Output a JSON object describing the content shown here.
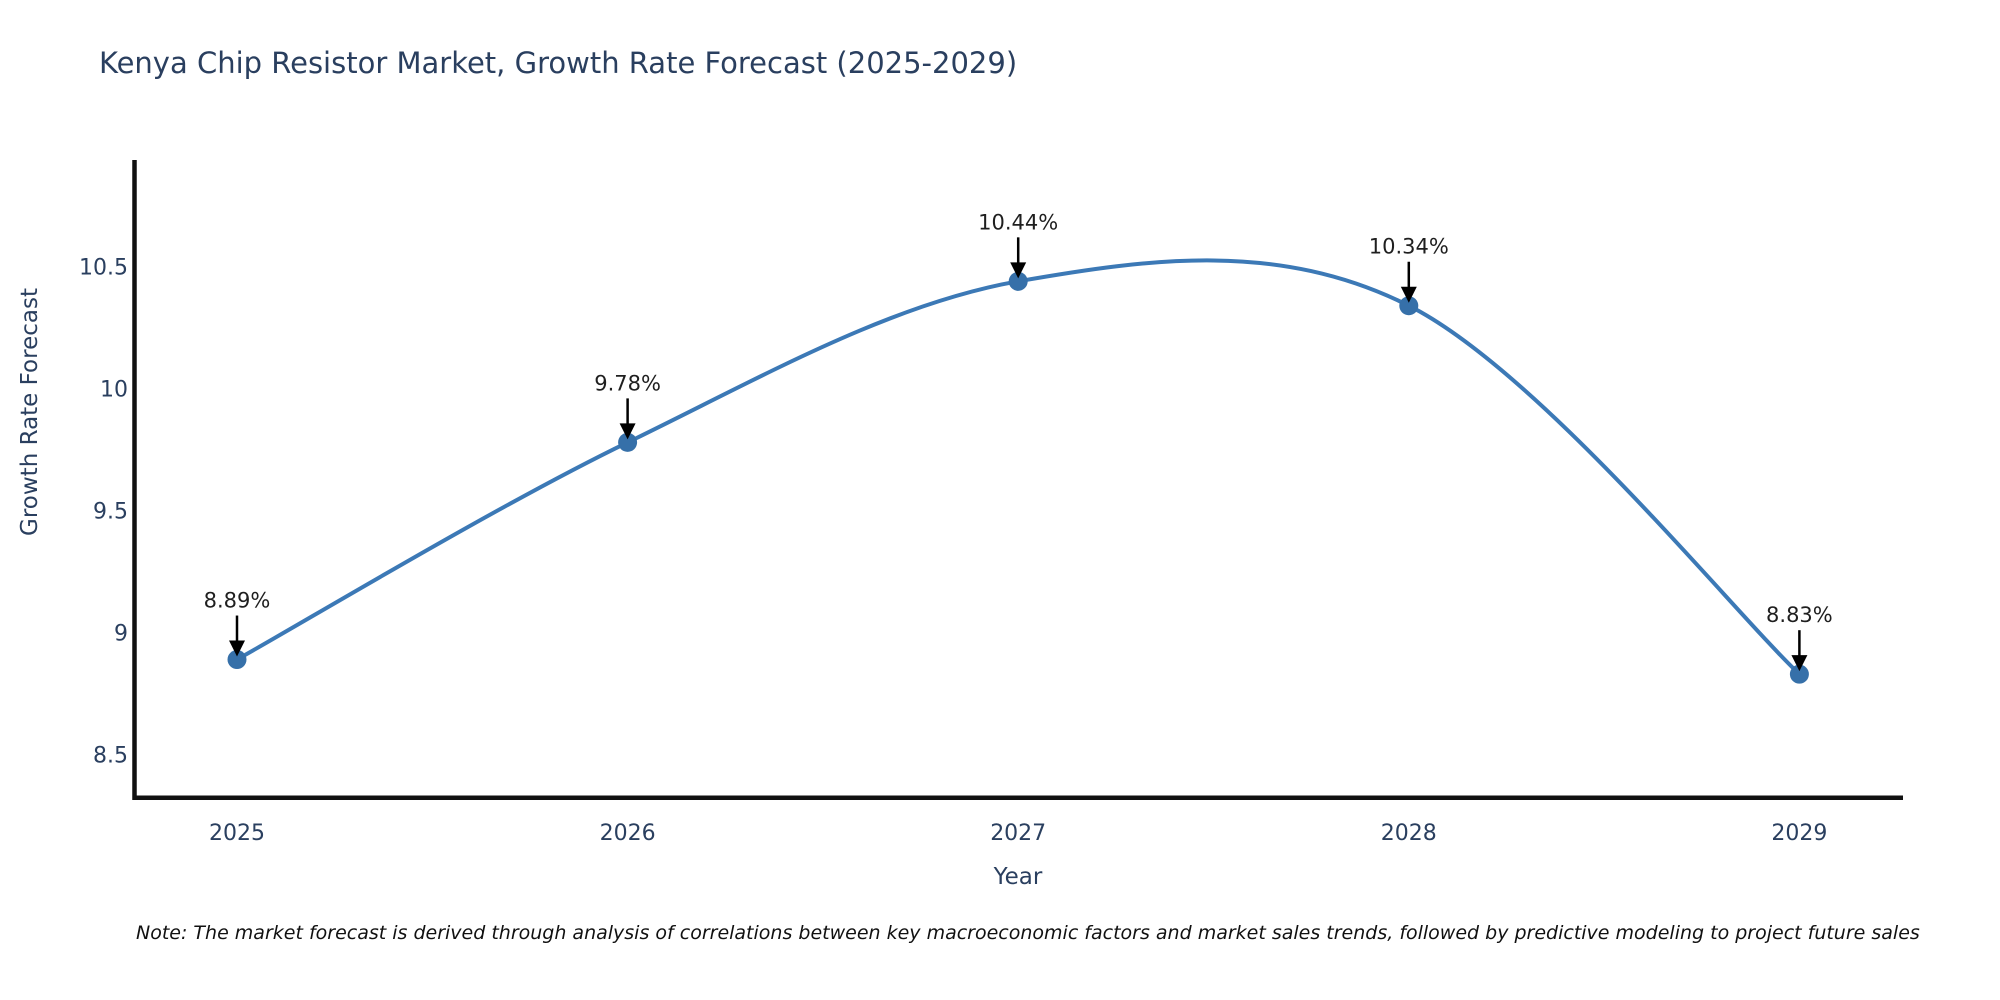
{
  "chart_data": {
    "type": "line",
    "title": "Kenya Chip Resistor Market, Growth Rate Forecast (2025-2029)",
    "xlabel": "Year",
    "ylabel": "Growth Rate Forecast",
    "categories": [
      "2025",
      "2026",
      "2027",
      "2028",
      "2029"
    ],
    "series": [
      {
        "name": "Growth Rate Forecast",
        "values": [
          8.89,
          9.78,
          10.44,
          10.34,
          8.83
        ],
        "point_labels": [
          "8.89%",
          "9.78%",
          "10.44%",
          "10.34%",
          "8.83%"
        ]
      }
    ],
    "y_ticks": [
      "8.5",
      "9",
      "9.5",
      "10",
      "10.5"
    ],
    "y_tick_values": [
      8.5,
      9.0,
      9.5,
      10.0,
      10.5
    ],
    "ylim": [
      8.31,
      10.94
    ],
    "line_shape": "spline",
    "marker": "circle",
    "grid": false,
    "legend_position": "none",
    "annotation_arrows": true,
    "colors": {
      "line": "#3c79b6",
      "marker": "#3670a9",
      "axis_line": "#111111",
      "title_text": "#2a3f5f",
      "tick_text": "#2a3f5f",
      "axis_title_text": "#2a3f5f",
      "annotation_text": "#1f1f1f",
      "arrow": "#000000",
      "background": "#ffffff"
    }
  },
  "note": {
    "text": "Note: The market forecast is derived through analysis of correlations between key macroeconomic factors and market sales trends, followed by predictive modeling to project future sales"
  }
}
